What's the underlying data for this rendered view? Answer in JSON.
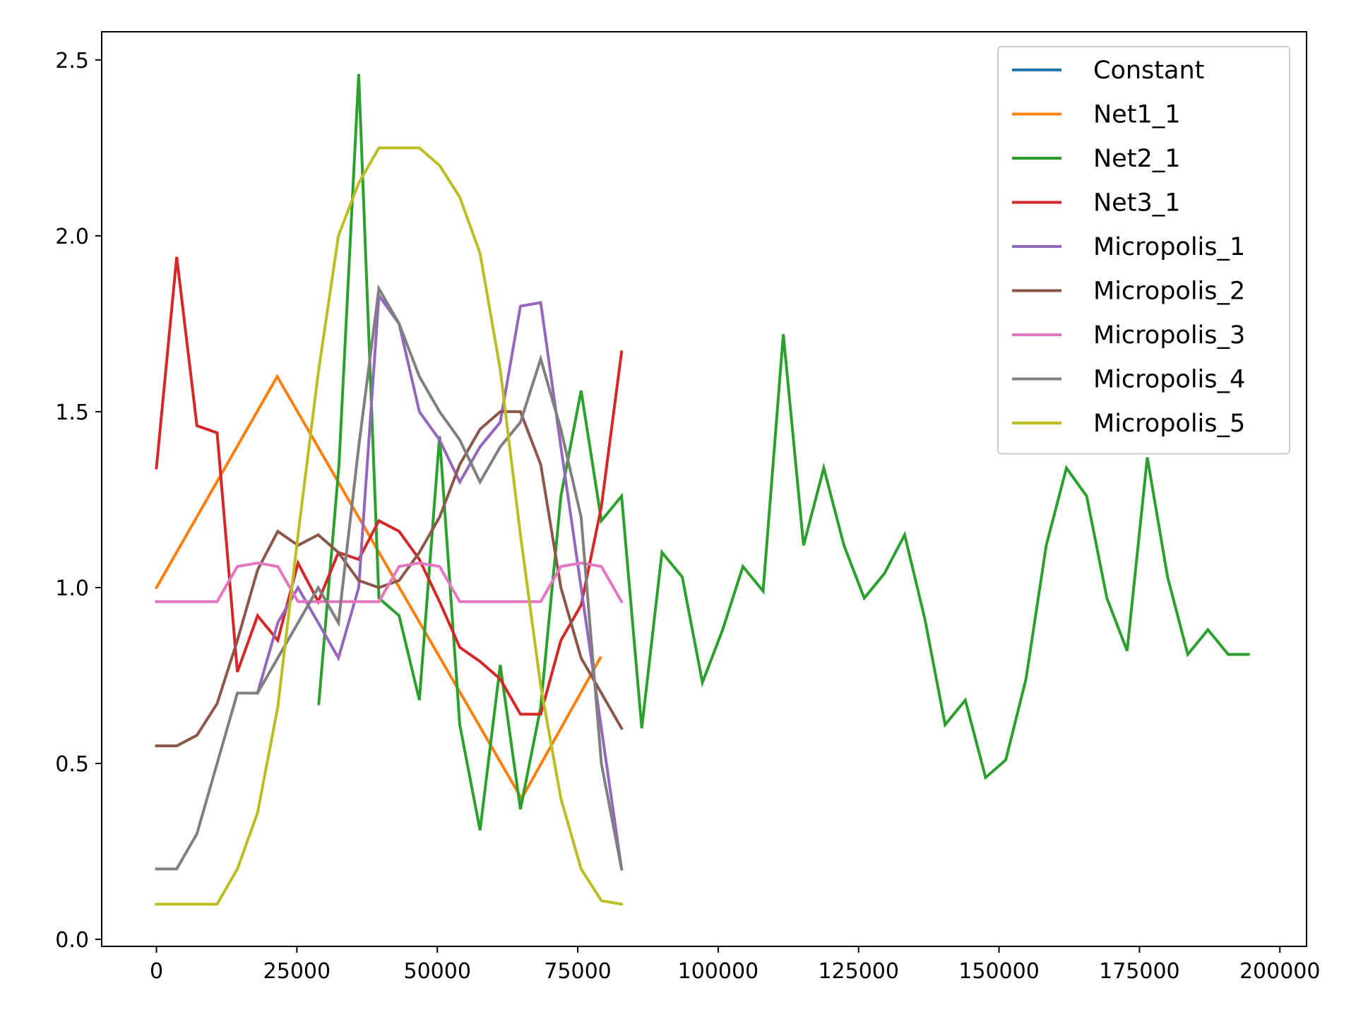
{
  "chart_data": {
    "type": "line",
    "title": "",
    "xlabel": "",
    "ylabel": "",
    "xlim": [
      -9750,
      204750
    ],
    "ylim": [
      -0.02,
      2.58
    ],
    "xticks": [
      0,
      25000,
      50000,
      75000,
      100000,
      125000,
      150000,
      175000,
      200000
    ],
    "xtick_labels": [
      "0",
      "25000",
      "50000",
      "75000",
      "100000",
      "125000",
      "150000",
      "175000",
      "200000"
    ],
    "yticks": [
      0.0,
      0.5,
      1.0,
      1.5,
      2.0,
      2.5
    ],
    "ytick_labels": [
      "0.0",
      "0.5",
      "1.0",
      "1.5",
      "2.0",
      "2.5"
    ],
    "grid": false,
    "legend_position": "upper right",
    "series": [
      {
        "name": "Constant",
        "color": "#1f77b4",
        "x": [],
        "y": []
      },
      {
        "name": "Net1_1",
        "color": "#ff7f0e",
        "x": [
          0,
          21500,
          65000,
          79000
        ],
        "y": [
          1.0,
          1.6,
          0.4,
          0.8
        ]
      },
      {
        "name": "Net2_1",
        "color": "#2ca02c",
        "x": [
          28900,
          32500,
          36000,
          39600,
          43200,
          46800,
          50400,
          54000,
          57600,
          61200,
          64800,
          68400,
          72000,
          75600,
          79200,
          82800,
          86400,
          90000,
          93600,
          97200,
          100800,
          104400,
          108000,
          111600,
          115200,
          118800,
          122400,
          126000,
          129600,
          133200,
          136800,
          140400,
          144000,
          147600,
          151200,
          154800,
          158400,
          162000,
          165600,
          169200,
          172800,
          176400,
          180000,
          183600,
          187200,
          190800,
          194400
        ],
        "y": [
          0.67,
          1.35,
          2.46,
          0.97,
          0.92,
          0.68,
          1.43,
          0.61,
          0.31,
          0.78,
          0.37,
          0.66,
          1.26,
          1.56,
          1.19,
          1.26,
          0.6,
          1.1,
          1.03,
          0.73,
          0.88,
          1.06,
          0.99,
          1.72,
          1.12,
          1.34,
          1.12,
          0.97,
          1.04,
          1.15,
          0.91,
          0.61,
          0.68,
          0.46,
          0.51,
          0.74,
          1.12,
          1.34,
          1.26,
          0.97,
          0.82,
          1.37,
          1.03,
          0.81,
          0.88,
          0.81,
          0.81
        ]
      },
      {
        "name": "Net3_1",
        "color": "#d62728",
        "x": [
          0,
          3600,
          7200,
          10800,
          14400,
          18000,
          21600,
          25200,
          28800,
          32400,
          36000,
          39600,
          43200,
          46800,
          50400,
          54000,
          57600,
          61200,
          64800,
          68400,
          72000,
          75600,
          79200,
          82800
        ],
        "y": [
          1.34,
          1.94,
          1.46,
          1.44,
          0.76,
          0.92,
          0.85,
          1.07,
          0.96,
          1.1,
          1.08,
          1.19,
          1.16,
          1.08,
          0.96,
          0.83,
          0.79,
          0.74,
          0.64,
          0.64,
          0.85,
          0.95,
          1.23,
          1.67
        ]
      },
      {
        "name": "Micropolis_1",
        "color": "#9467bd",
        "x": [
          18000,
          21600,
          25200,
          28800,
          32400,
          36000,
          39600,
          43200,
          46800,
          50400,
          54000,
          57600,
          61200,
          64800,
          68400,
          72000,
          75600,
          79200,
          82800
        ],
        "y": [
          0.7,
          0.9,
          1.0,
          0.9,
          0.8,
          1.0,
          1.83,
          1.75,
          1.5,
          1.42,
          1.3,
          1.4,
          1.47,
          1.8,
          1.81,
          1.4,
          1.0,
          0.6,
          0.2
        ]
      },
      {
        "name": "Micropolis_2",
        "color": "#8c564b",
        "x": [
          0,
          3600,
          7200,
          10800,
          14400,
          18000,
          21600,
          25200,
          28800,
          32400,
          36000,
          39600,
          43200,
          46800,
          50400,
          54000,
          57600,
          61200,
          64800,
          68400,
          72000,
          75600,
          79200,
          82800
        ],
        "y": [
          0.55,
          0.55,
          0.58,
          0.67,
          0.85,
          1.05,
          1.16,
          1.12,
          1.15,
          1.1,
          1.02,
          1.0,
          1.02,
          1.1,
          1.2,
          1.35,
          1.45,
          1.5,
          1.5,
          1.35,
          1.0,
          0.8,
          0.7,
          0.6
        ]
      },
      {
        "name": "Micropolis_3",
        "color": "#e377c2",
        "x": [
          0,
          3600,
          7200,
          10800,
          14400,
          18000,
          21600,
          25200,
          28800,
          32400,
          36000,
          39600,
          43200,
          46800,
          50400,
          54000,
          57600,
          61200,
          64800,
          68400,
          72000,
          75600,
          79200,
          82800
        ],
        "y": [
          0.96,
          0.96,
          0.96,
          0.96,
          1.06,
          1.07,
          1.06,
          0.96,
          0.96,
          0.96,
          0.96,
          0.96,
          1.06,
          1.07,
          1.06,
          0.96,
          0.96,
          0.96,
          0.96,
          0.96,
          1.06,
          1.07,
          1.06,
          0.96
        ]
      },
      {
        "name": "Micropolis_4",
        "color": "#7f7f7f",
        "x": [
          0,
          3600,
          7200,
          10800,
          14400,
          18000,
          21600,
          25200,
          28800,
          32400,
          36000,
          39600,
          43200,
          46800,
          50400,
          54000,
          57600,
          61200,
          64800,
          68400,
          72000,
          75600,
          79200,
          82800
        ],
        "y": [
          0.2,
          0.2,
          0.3,
          0.5,
          0.7,
          0.7,
          0.8,
          0.9,
          1.0,
          0.9,
          1.4,
          1.85,
          1.75,
          1.6,
          1.5,
          1.42,
          1.3,
          1.4,
          1.47,
          1.65,
          1.45,
          1.2,
          0.5,
          0.2
        ]
      },
      {
        "name": "Micropolis_5",
        "color": "#bcbd22",
        "x": [
          0,
          3600,
          7200,
          10800,
          14400,
          18000,
          21600,
          25200,
          28800,
          32400,
          36000,
          39600,
          43200,
          46800,
          50400,
          54000,
          57600,
          61200,
          64800,
          68400,
          72000,
          75600,
          79200,
          82800
        ],
        "y": [
          0.1,
          0.1,
          0.1,
          0.1,
          0.2,
          0.36,
          0.66,
          1.15,
          1.61,
          2.0,
          2.15,
          2.25,
          2.25,
          2.25,
          2.2,
          2.11,
          1.95,
          1.62,
          1.15,
          0.72,
          0.4,
          0.2,
          0.11,
          0.1
        ]
      }
    ]
  }
}
